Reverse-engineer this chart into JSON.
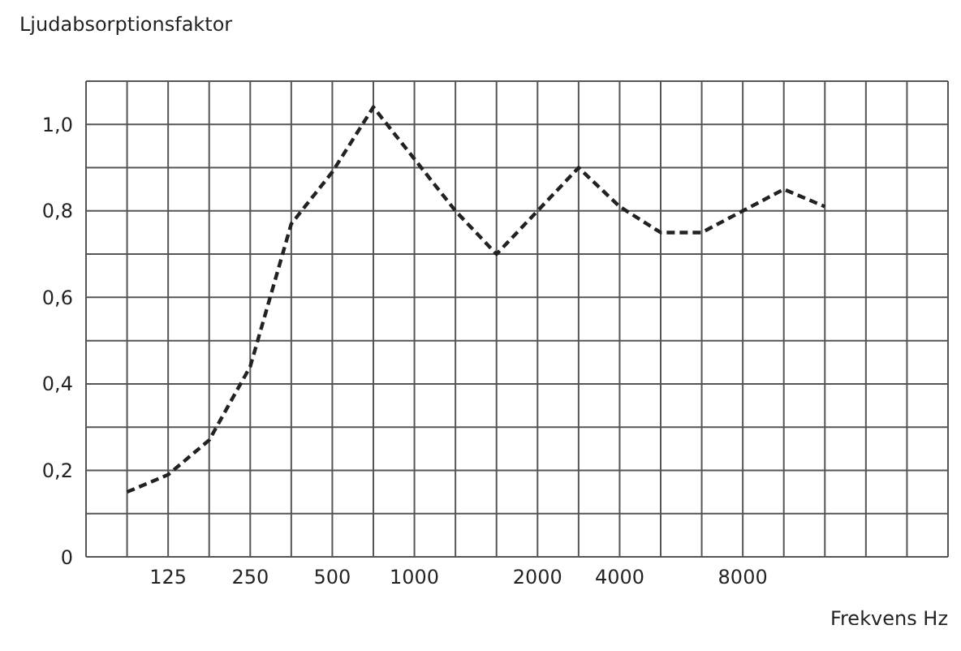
{
  "chart_data": {
    "type": "line",
    "ylabel": "Ljudabsorptionsfaktor",
    "xlabel": "Frekvens Hz",
    "categories": [
      null,
      null,
      "125",
      null,
      "250",
      null,
      "500",
      null,
      "1000",
      null,
      null,
      "2000",
      null,
      "4000",
      null,
      null,
      "8000",
      null,
      null,
      null,
      null,
      null
    ],
    "series": [
      {
        "color": "#222222",
        "values": [
          null,
          0.15,
          0.19,
          0.27,
          0.44,
          0.77,
          0.89,
          1.04,
          0.92,
          0.8,
          0.7,
          0.8,
          0.9,
          0.81,
          0.75,
          0.75,
          0.8,
          0.85,
          0.81,
          null,
          null,
          null
        ]
      }
    ],
    "ylim": [
      0,
      1.1
    ],
    "yticks": [
      {
        "value": 0,
        "label": "0"
      },
      {
        "value": 0.1,
        "label": null
      },
      {
        "value": 0.2,
        "label": "0,2"
      },
      {
        "value": 0.3,
        "label": null
      },
      {
        "value": 0.4,
        "label": "0,4"
      },
      {
        "value": 0.5,
        "label": null
      },
      {
        "value": 0.6,
        "label": "0,6"
      },
      {
        "value": 0.7,
        "label": null
      },
      {
        "value": 0.8,
        "label": "0,8"
      },
      {
        "value": 0.9,
        "label": null
      },
      {
        "value": 1,
        "label": "1,0"
      },
      {
        "value": 1.1,
        "label": null
      }
    ],
    "grid": true,
    "legend": false,
    "marker": "none",
    "line_style": "dashed"
  }
}
